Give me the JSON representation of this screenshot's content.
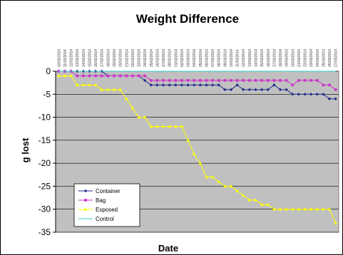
{
  "chart_data": {
    "type": "line",
    "title": "Weight Difference",
    "xlabel": "Date",
    "ylabel": "g lost",
    "ylim": [
      -35,
      0
    ],
    "yticks": [
      0,
      -5,
      -10,
      -15,
      -20,
      -25,
      -30,
      -35
    ],
    "grid": true,
    "legend_position": "bottom-left",
    "background_color": "#C0C0C0",
    "categories": [
      "10/02/2014",
      "11/02/2014",
      "12/02/2014",
      "13/02/2014",
      "14/02/2014",
      "15/02/2014",
      "16/02/2014",
      "17/02/2014",
      "18/02/2014",
      "19/02/2014",
      "20/02/2014",
      "21/02/2014",
      "22/02/2014",
      "23/02/2014",
      "24/02/2014",
      "25/02/2014",
      "26/02/2014",
      "27/02/2014",
      "28/02/2014",
      "01/03/2014",
      "02/03/2014",
      "03/03/2014",
      "04/03/2014",
      "05/03/2014",
      "06/03/2014",
      "07/03/2014",
      "08/03/2014",
      "09/03/2014",
      "10/03/2014",
      "11/03/2014",
      "12/03/2014",
      "13/03/2014",
      "14/03/2014",
      "15/03/2014",
      "16/03/2014",
      "17/03/2014",
      "18/03/2014",
      "19/03/2014",
      "20/03/2014",
      "21/03/2014",
      "22/03/2014",
      "23/03/2014",
      "24/03/2014",
      "25/03/2014",
      "26/03/2014",
      "27/03/2014"
    ],
    "series": [
      {
        "name": "Container",
        "color": "#1f2a8c",
        "marker": "diamond",
        "values": [
          0,
          0,
          0,
          0,
          0,
          0,
          0,
          0,
          -1,
          -1,
          -1,
          -1,
          -1,
          -1,
          -2,
          -3,
          -3,
          -3,
          -3,
          -3,
          -3,
          -3,
          -3,
          -3,
          -3,
          -3,
          -3,
          -4,
          -4,
          -3,
          -4,
          -4,
          -4,
          -4,
          -4,
          -3,
          -4,
          -4,
          -5,
          -5,
          -5,
          -5,
          -5,
          -5,
          -6,
          -6
        ]
      },
      {
        "name": "Bag",
        "color": "#cc33cc",
        "marker": "square",
        "values": [
          0,
          0,
          0,
          -1,
          -1,
          -1,
          -1,
          -1,
          -1,
          -1,
          -1,
          -1,
          -1,
          -1,
          -1,
          -2,
          -2,
          -2,
          -2,
          -2,
          -2,
          -2,
          -2,
          -2,
          -2,
          -2,
          -2,
          -2,
          -2,
          -2,
          -2,
          -2,
          -2,
          -2,
          -2,
          -2,
          -2,
          -2,
          -3,
          -2,
          -2,
          -2,
          -2,
          -3,
          -3,
          -4
        ]
      },
      {
        "name": "Exposed",
        "color": "#ffff00",
        "marker": "triangle",
        "values": [
          -1,
          -1,
          -1,
          -3,
          -3,
          -3,
          -3,
          -4,
          -4,
          -4,
          -4,
          -6,
          -8,
          -10,
          -10,
          -12,
          -12,
          -12,
          -12,
          -12,
          -12,
          -15,
          -18,
          -20,
          -23,
          -23,
          -24,
          -25,
          -25,
          -26,
          -27,
          -28,
          -28,
          -29,
          -29,
          -30,
          -30,
          -30,
          -30,
          -30,
          -30,
          -30,
          -30,
          -30,
          -30,
          -33
        ]
      },
      {
        "name": "Control",
        "color": "#33cccc",
        "marker": "none",
        "values": [
          0,
          0,
          0,
          0,
          0,
          0,
          0,
          0,
          0,
          0,
          0,
          0,
          0,
          0,
          0,
          0,
          0,
          0,
          0,
          0,
          0,
          0,
          0,
          0,
          0,
          0,
          0,
          0,
          0,
          0,
          0,
          0,
          0,
          0,
          0,
          0,
          0,
          0,
          0,
          0,
          0,
          0,
          0,
          0,
          0,
          0
        ]
      }
    ]
  }
}
